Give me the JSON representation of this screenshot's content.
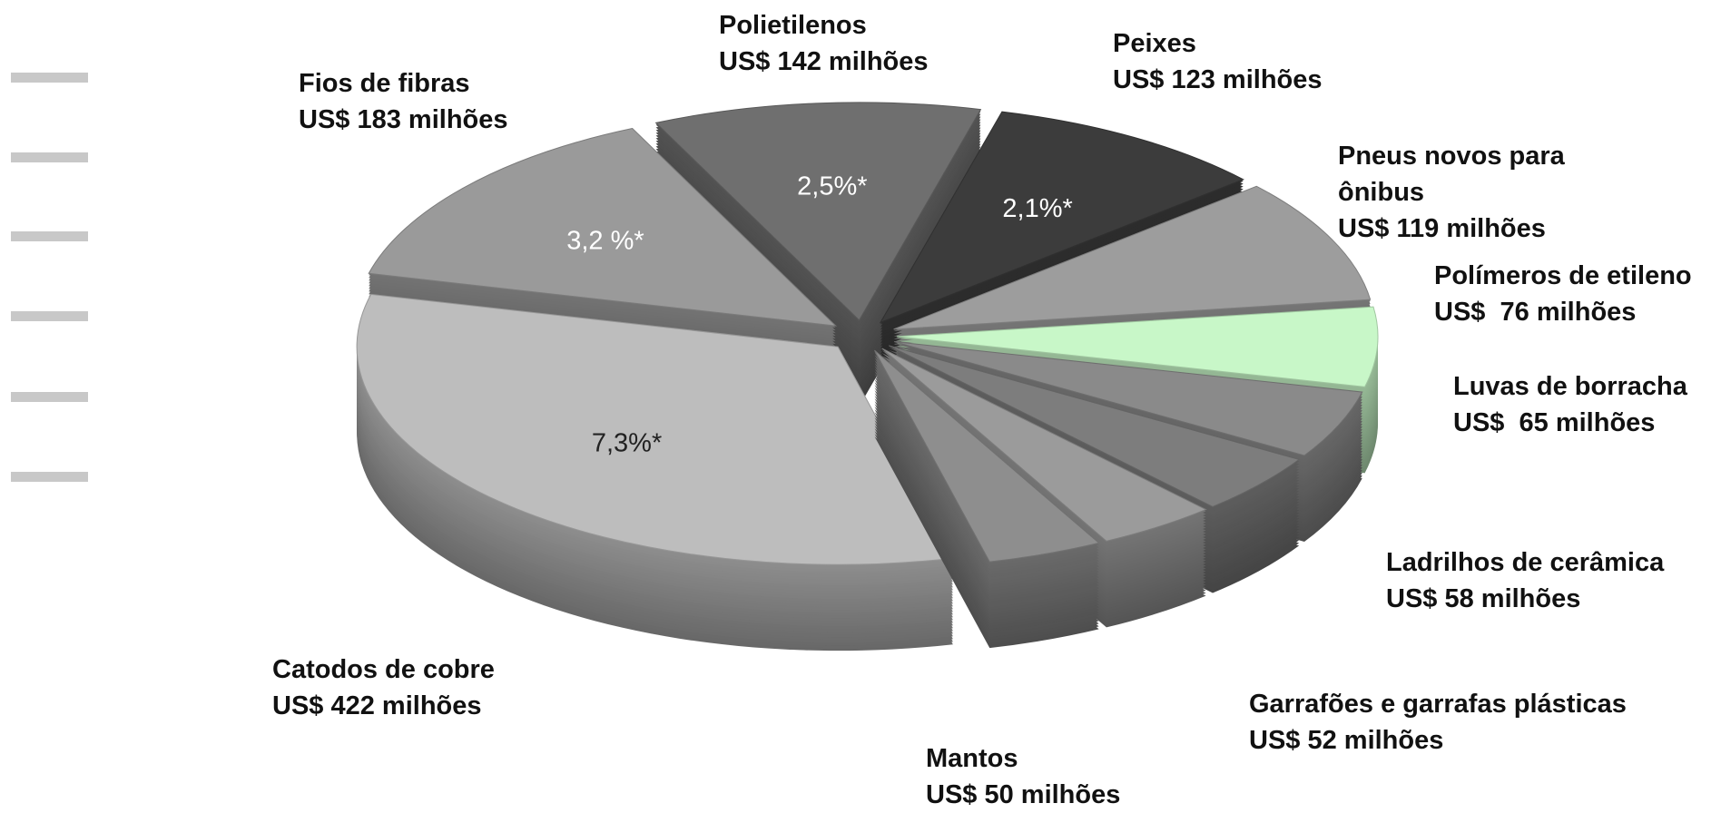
{
  "chart_data": {
    "type": "pie",
    "categories": [
      "Polietilenos",
      "Peixes",
      "Pneus novos para ônibus",
      "Polímeros de etileno",
      "Luvas de borracha",
      "Ladrilhos de cerâmica",
      "Garrafões e garrafas plásticas",
      "Mantos",
      "Catodos de cobre",
      "Fios de fibras"
    ],
    "values": [
      142,
      123,
      119,
      76,
      65,
      58,
      52,
      50,
      422,
      183
    ],
    "value_labels": [
      "US$ 142 milhões",
      "US$ 123 milhões",
      "US$ 119 milhões",
      "US$  76 milhões",
      "US$  65 milhões",
      "US$ 58 milhões",
      "US$ 52 milhões",
      "US$ 50 milhões",
      "US$ 422 milhões",
      "US$ 183 milhões"
    ],
    "percent_labels": [
      "2,5%*",
      "2,1%*",
      null,
      null,
      null,
      null,
      null,
      null,
      "7,3%*",
      "3,2 %*"
    ],
    "colors": [
      "#6f6f6f",
      "#3c3c3c",
      "#9d9d9d",
      "#c8f7c8",
      "#8a8a8a",
      "#7d7d7d",
      "#9b9b9b",
      "#8e8e8e",
      "#bdbdbd",
      "#9a9a9a"
    ]
  }
}
